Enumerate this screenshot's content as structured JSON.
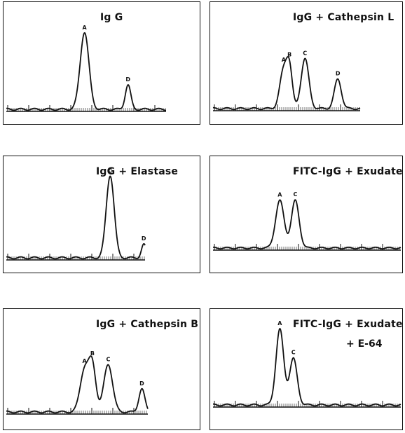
{
  "chart_data": [
    {
      "type": "line",
      "title": "Ig G",
      "subtitle": "",
      "xlabel": "",
      "ylabel": "",
      "grid": false,
      "peaks": [
        {
          "label": "A",
          "x": 0.41,
          "height": 0.95,
          "width": 0.022
        },
        {
          "label": "D",
          "x": 0.63,
          "height": 0.3,
          "width": 0.014
        }
      ]
    },
    {
      "type": "line",
      "title": "IgG + Cathepsin L",
      "subtitle": "",
      "xlabel": "",
      "ylabel": "",
      "grid": false,
      "peaks": [
        {
          "label": "A",
          "x": 0.38,
          "height": 0.52,
          "width": 0.02
        },
        {
          "label": "B",
          "x": 0.41,
          "height": 0.5,
          "width": 0.015
        },
        {
          "label": "C",
          "x": 0.49,
          "height": 0.68,
          "width": 0.02
        },
        {
          "label": "D",
          "x": 0.66,
          "height": 0.4,
          "width": 0.018
        }
      ]
    },
    {
      "type": "line",
      "title": "IgG + Elastase",
      "subtitle": "",
      "xlabel": "",
      "ylabel": "",
      "grid": false,
      "peaks": [
        {
          "label": "C",
          "x": 0.54,
          "height": 1.0,
          "width": 0.02
        },
        {
          "label": "D",
          "x": 0.71,
          "height": 0.16,
          "width": 0.012
        }
      ]
    },
    {
      "type": "line",
      "title": "FITC-IgG + Exudate",
      "subtitle": "",
      "xlabel": "",
      "ylabel": "",
      "grid": false,
      "peaks": [
        {
          "label": "A",
          "x": 0.36,
          "height": 0.72,
          "width": 0.022
        },
        {
          "label": "C",
          "x": 0.44,
          "height": 0.72,
          "width": 0.02
        }
      ]
    },
    {
      "type": "line",
      "title": "IgG + Cathepsin B",
      "subtitle": "",
      "xlabel": "",
      "ylabel": "",
      "grid": false,
      "peaks": [
        {
          "label": "A",
          "x": 0.41,
          "height": 0.55,
          "width": 0.022
        },
        {
          "label": "B",
          "x": 0.45,
          "height": 0.58,
          "width": 0.018
        },
        {
          "label": "C",
          "x": 0.53,
          "height": 0.62,
          "width": 0.022
        },
        {
          "label": "D",
          "x": 0.7,
          "height": 0.3,
          "width": 0.015
        }
      ]
    },
    {
      "type": "line",
      "title": "FITC-IgG + Exudate",
      "subtitle": "+ E-64",
      "xlabel": "",
      "ylabel": "",
      "grid": false,
      "peaks": [
        {
          "label": "A",
          "x": 0.36,
          "height": 0.98,
          "width": 0.02
        },
        {
          "label": "C",
          "x": 0.43,
          "height": 0.6,
          "width": 0.02
        }
      ]
    }
  ]
}
